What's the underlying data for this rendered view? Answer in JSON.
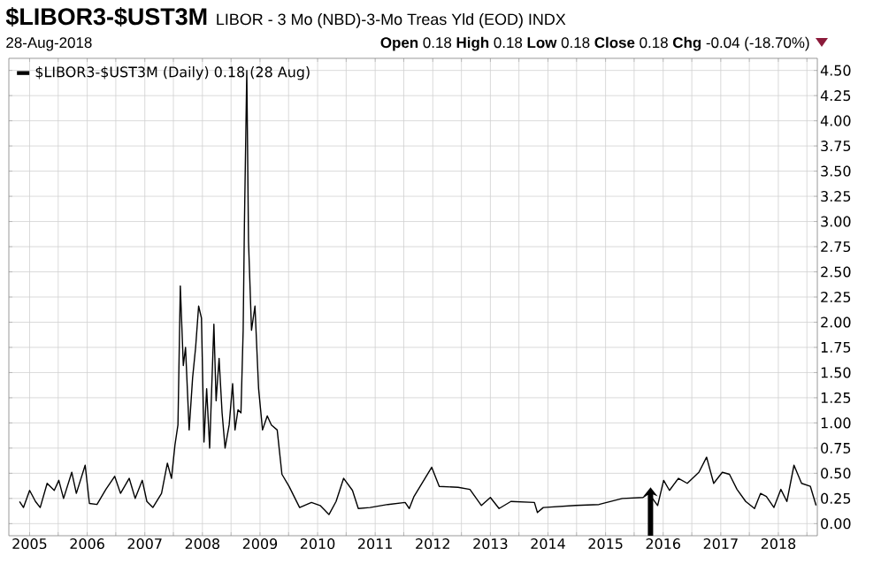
{
  "chart_data": {
    "type": "line",
    "title": "$LIBOR3-$UST3M",
    "subtitle": "LIBOR - 3 Mo (NBD)-3-Mo Treas Yld (EOD) INDX",
    "annotations": [
      "28-Aug-2018",
      "**Open** 0.18 **High** 0.18 **Low** 0.18 **Close** 0.18 **Chg** -0.04 (-18.70%)"
    ],
    "legend": "top left",
    "grid": true,
    "xlim": [
      "2004-08-22",
      "2018-09-05"
    ],
    "xticks": [
      {
        "value": "2005",
        "label": "2005"
      },
      {
        "value": "2005-07",
        "label": null
      },
      {
        "value": "2006",
        "label": "2006"
      },
      {
        "value": "2006-07",
        "label": null
      },
      {
        "value": "2007",
        "label": "2007"
      },
      {
        "value": "2007-07",
        "label": null
      },
      {
        "value": "2008",
        "label": "2008"
      },
      {
        "value": "2008-07",
        "label": null
      },
      {
        "value": "2009",
        "label": "2009"
      },
      {
        "value": "2009-07",
        "label": null
      },
      {
        "value": "2010",
        "label": "2010"
      },
      {
        "value": "2010-07",
        "label": null
      },
      {
        "value": "2011",
        "label": "2011"
      },
      {
        "value": "2011-07",
        "label": null
      },
      {
        "value": "2012",
        "label": "2012"
      },
      {
        "value": "2012-07",
        "label": null
      },
      {
        "value": "2013",
        "label": "2013"
      },
      {
        "value": "2013-07",
        "label": null
      },
      {
        "value": "2014",
        "label": "2014"
      },
      {
        "value": "2014-07",
        "label": null
      },
      {
        "value": "2015",
        "label": "2015"
      },
      {
        "value": "2015-07",
        "label": null
      },
      {
        "value": "2016",
        "label": "2016"
      },
      {
        "value": "2016-07",
        "label": null
      },
      {
        "value": "2017",
        "label": "2017"
      },
      {
        "value": "2017-07",
        "label": null
      },
      {
        "value": "2018",
        "label": "2018"
      },
      {
        "value": "2018-07",
        "label": null
      }
    ],
    "ylim": [
      -0.12,
      4.62
    ],
    "yticks": [
      {
        "value": 0,
        "label": "0.00"
      },
      {
        "value": 0.25,
        "label": "0.25"
      },
      {
        "value": 0.5,
        "label": "0.50"
      },
      {
        "value": 0.75,
        "label": "0.75"
      },
      {
        "value": 1,
        "label": "1.00"
      },
      {
        "value": 1.25,
        "label": "1.25"
      },
      {
        "value": 1.5,
        "label": "1.50"
      },
      {
        "value": 1.75,
        "label": "1.75"
      },
      {
        "value": 2,
        "label": "2.00"
      },
      {
        "value": 2.25,
        "label": "2.25"
      },
      {
        "value": 2.5,
        "label": "2.50"
      },
      {
        "value": 2.75,
        "label": "2.75"
      },
      {
        "value": 3,
        "label": "3.00"
      },
      {
        "value": 3.25,
        "label": "3.25"
      },
      {
        "value": 3.5,
        "label": "3.50"
      },
      {
        "value": 3.75,
        "label": "3.75"
      },
      {
        "value": 4,
        "label": "4.00"
      },
      {
        "value": 4.25,
        "label": "4.25"
      },
      {
        "value": 4.5,
        "label": "4.50"
      }
    ],
    "series": [
      {
        "name": "$LIBOR3-$UST3M (Daily) 0.18 (28 Aug)",
        "color": "#000000",
        "x": [
          "2004-10-29",
          "2004-11-23",
          "2005-01-01",
          "2005-02-07",
          "2005-03-09",
          "2005-04-22",
          "2005-06-06",
          "2005-07-05",
          "2005-08-04",
          "2005-09-25",
          "2005-10-24",
          "2005-12-19",
          "2006-01-15",
          "2006-03-04",
          "2006-04-29",
          "2006-06-24",
          "2006-07-31",
          "2006-09-24",
          "2006-11-01",
          "2006-12-16",
          "2007-01-14",
          "2007-02-21",
          "2007-04-17",
          "2007-05-24",
          "2007-06-19",
          "2007-07-11",
          "2007-07-30",
          "2007-08-14",
          "2007-09-02",
          "2007-09-16",
          "2007-10-09",
          "2007-10-31",
          "2007-11-19",
          "2007-12-08",
          "2007-12-26",
          "2008-01-11",
          "2008-01-28",
          "2008-02-16",
          "2008-03-14",
          "2008-03-28",
          "2008-04-16",
          "2008-05-05",
          "2008-05-24",
          "2008-06-19",
          "2008-07-11",
          "2008-07-26",
          "2008-08-14",
          "2008-09-02",
          "2008-09-16",
          "2008-09-24",
          "2008-10-09",
          "2008-10-20",
          "2008-11-08",
          "2008-11-30",
          "2008-12-23",
          "2009-01-17",
          "2009-02-16",
          "2009-03-14",
          "2009-04-20",
          "2009-05-20",
          "2009-07-04",
          "2009-09-09",
          "2009-11-23",
          "2010-01-17",
          "2010-03-14",
          "2010-04-28",
          "2010-06-15",
          "2010-08-10",
          "2010-09-16",
          "2010-11-29",
          "2011-03-22",
          "2011-07-10",
          "2011-08-05",
          "2011-09-04",
          "2011-12-25",
          "2012-02-11",
          "2012-06-10",
          "2012-08-24",
          "2012-11-05",
          "2013-01-01",
          "2013-02-25",
          "2013-05-11",
          "2013-10-07",
          "2013-10-26",
          "2013-12-02",
          "2014-06-25",
          "2014-11-20",
          "2015-04-17",
          "2015-08-26",
          "2015-10-02",
          "2015-11-27",
          "2016-01-04",
          "2016-02-10",
          "2016-04-07",
          "2016-06-02",
          "2016-08-15",
          "2016-10-03",
          "2016-11-17",
          "2017-01-11",
          "2017-02-25",
          "2017-04-14",
          "2017-06-08",
          "2017-08-03",
          "2017-09-10",
          "2017-10-17",
          "2017-12-04",
          "2018-01-17",
          "2018-02-24",
          "2018-04-10",
          "2018-05-28",
          "2018-07-23",
          "2018-08-28"
        ],
        "values": [
          0.22,
          0.16,
          0.33,
          0.22,
          0.16,
          0.4,
          0.33,
          0.43,
          0.25,
          0.51,
          0.3,
          0.58,
          0.2,
          0.19,
          0.34,
          0.47,
          0.3,
          0.45,
          0.25,
          0.43,
          0.22,
          0.16,
          0.3,
          0.6,
          0.45,
          0.78,
          0.98,
          2.36,
          1.57,
          1.75,
          0.93,
          1.45,
          1.75,
          2.16,
          2.04,
          0.81,
          1.34,
          0.75,
          1.98,
          1.22,
          1.64,
          1.1,
          0.75,
          0.98,
          1.39,
          0.93,
          1.13,
          1.1,
          1.92,
          2.98,
          4.5,
          2.8,
          1.92,
          2.16,
          1.34,
          0.93,
          1.07,
          0.98,
          0.93,
          0.49,
          0.37,
          0.16,
          0.21,
          0.18,
          0.09,
          0.22,
          0.45,
          0.33,
          0.15,
          0.16,
          0.19,
          0.21,
          0.15,
          0.27,
          0.56,
          0.37,
          0.36,
          0.34,
          0.18,
          0.26,
          0.15,
          0.22,
          0.21,
          0.11,
          0.16,
          0.18,
          0.19,
          0.25,
          0.26,
          0.3,
          0.18,
          0.43,
          0.33,
          0.45,
          0.4,
          0.51,
          0.66,
          0.4,
          0.51,
          0.49,
          0.34,
          0.22,
          0.15,
          0.3,
          0.27,
          0.16,
          0.34,
          0.22,
          0.58,
          0.4,
          0.37,
          0.18
        ]
      }
    ]
  }
}
